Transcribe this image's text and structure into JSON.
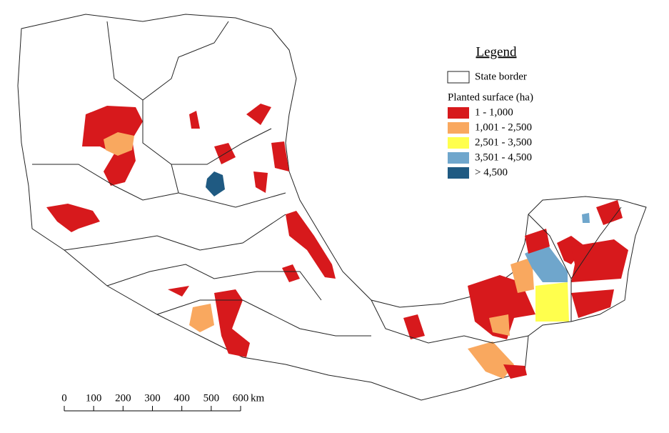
{
  "legend": {
    "title": "Legend",
    "border_label": "State border",
    "section_title": "Planted surface (ha)",
    "classes": [
      {
        "label": "1 - 1,000",
        "color": "#d7191c"
      },
      {
        "label": "1,001 - 2,500",
        "color": "#f9a85f"
      },
      {
        "label": "2,501 - 3,500",
        "color": "#ffff4d"
      },
      {
        "label": "3,501 - 4,500",
        "color": "#6fa6cc"
      },
      {
        "label": "> 4,500",
        "color": "#1f5a82"
      }
    ]
  },
  "scale_bar": {
    "ticks": [
      0,
      100,
      200,
      300,
      400,
      500,
      600
    ],
    "unit": "km"
  }
}
